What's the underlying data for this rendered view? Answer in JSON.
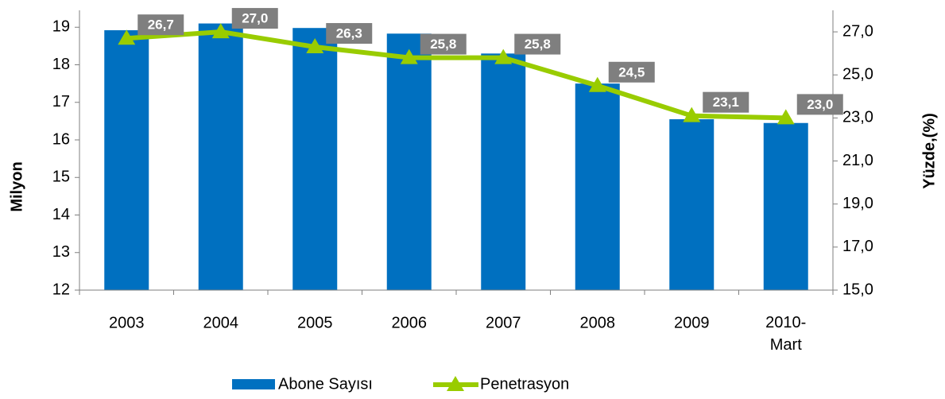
{
  "chart_data": {
    "type": "bar-line",
    "categories": [
      "2003",
      "2004",
      "2005",
      "2006",
      "2007",
      "2008",
      "2009",
      "2010-Mart"
    ],
    "ylabel": "Milyon",
    "y2label": "Yüzde,(%)",
    "ylim": [
      12,
      19.45
    ],
    "yticks": [
      12,
      13,
      14,
      15,
      16,
      17,
      18,
      19
    ],
    "y2lim": [
      15,
      28
    ],
    "y2ticks": [
      {
        "value": 15,
        "label": "15,0"
      },
      {
        "value": 17,
        "label": "17,0"
      },
      {
        "value": 19,
        "label": "19,0"
      },
      {
        "value": 21,
        "label": "21,0"
      },
      {
        "value": 23,
        "label": "23,0"
      },
      {
        "value": 25,
        "label": "25,0"
      },
      {
        "value": 27,
        "label": "27,0"
      }
    ],
    "series": [
      {
        "name": "Abone Sayısı",
        "type": "bar",
        "color": "#0070c0",
        "values": [
          18.92,
          19.1,
          18.98,
          18.83,
          18.3,
          17.5,
          16.55,
          16.45
        ]
      },
      {
        "name": "Penetrasyon",
        "type": "line",
        "axis": "y2",
        "color": "#99cc00",
        "values": [
          26.7,
          27.0,
          26.3,
          25.8,
          25.8,
          24.5,
          23.1,
          23.0
        ],
        "value_labels": [
          "26,7",
          "27,0",
          "26,3",
          "25,8",
          "25,8",
          "24,5",
          "23,1",
          "23,0"
        ]
      }
    ]
  }
}
